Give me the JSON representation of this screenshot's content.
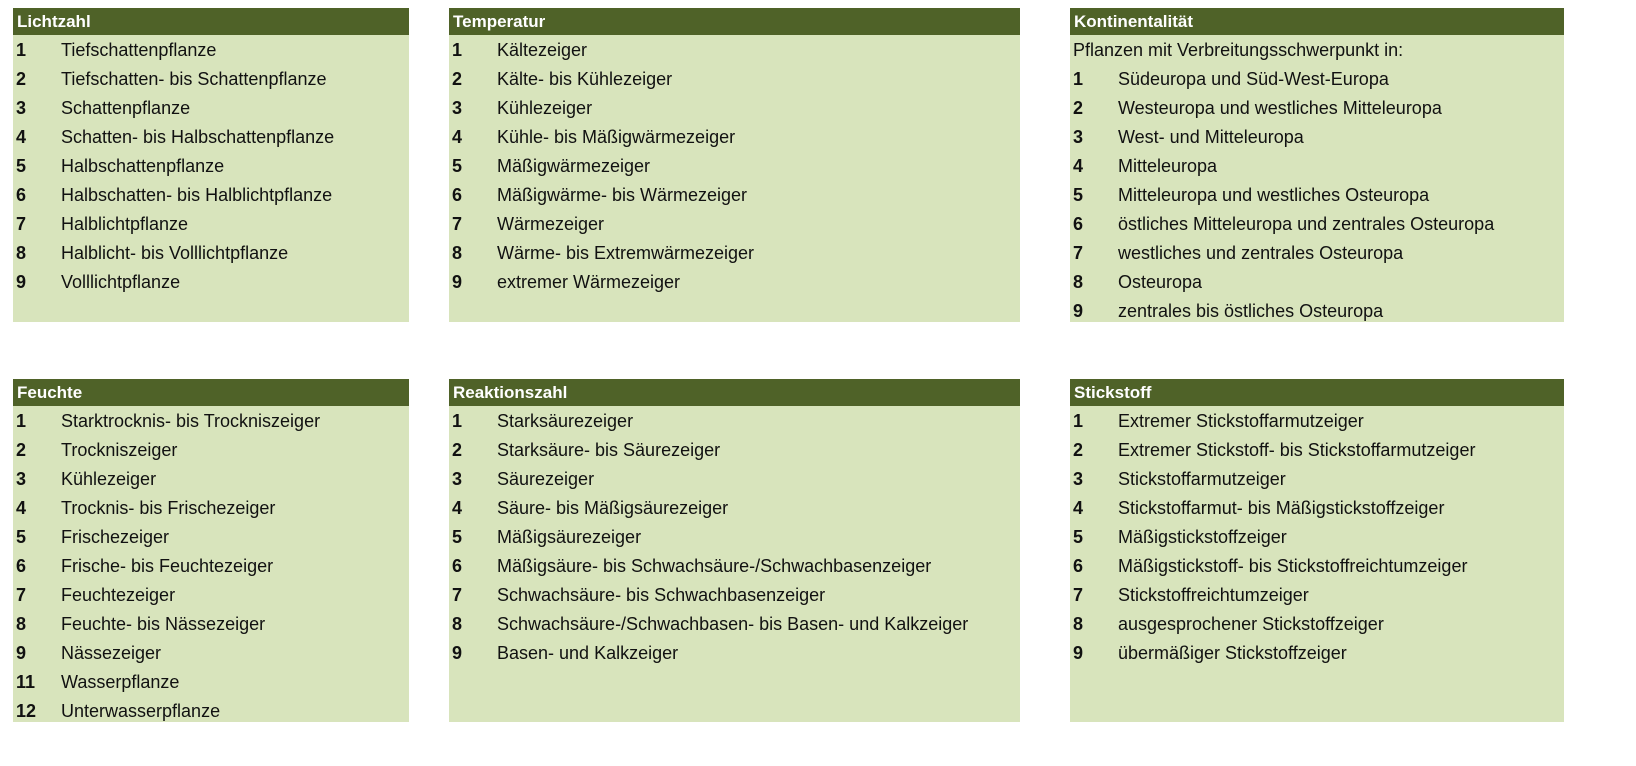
{
  "colors": {
    "header": "#4f6228",
    "body": "#d8e4bc",
    "header_text": "#ffffff"
  },
  "panels": [
    {
      "title": "Lichtzahl",
      "intro": "",
      "items": [
        {
          "n": "1",
          "t": "Tiefschattenpflanze"
        },
        {
          "n": "2",
          "t": "Tiefschatten- bis Schattenpflanze"
        },
        {
          "n": "3",
          "t": "Schattenpflanze"
        },
        {
          "n": "4",
          "t": "Schatten- bis Halbschattenpflanze"
        },
        {
          "n": "5",
          "t": "Halbschattenpflanze"
        },
        {
          "n": "6",
          "t": "Halbschatten- bis Halblichtpflanze"
        },
        {
          "n": "7",
          "t": "Halblichtpflanze"
        },
        {
          "n": "8",
          "t": "Halblicht- bis Volllichtpflanze"
        },
        {
          "n": "9",
          "t": "Volllichtpflanze"
        }
      ]
    },
    {
      "title": "Temperatur",
      "intro": "",
      "items": [
        {
          "n": "1",
          "t": "Kältezeiger"
        },
        {
          "n": "2",
          "t": "Kälte- bis Kühlezeiger"
        },
        {
          "n": "3",
          "t": "Kühlezeiger"
        },
        {
          "n": "4",
          "t": "Kühle- bis Mäßigwärmezeiger"
        },
        {
          "n": "5",
          "t": "Mäßigwärmezeiger"
        },
        {
          "n": "6",
          "t": "Mäßigwärme- bis Wärmezeiger"
        },
        {
          "n": "7",
          "t": "Wärmezeiger"
        },
        {
          "n": "8",
          "t": "Wärme- bis Extremwärmezeiger"
        },
        {
          "n": "9",
          "t": "extremer Wärmezeiger"
        }
      ]
    },
    {
      "title": "Kontinentalität",
      "intro": "Pflanzen mit Verbreitungsschwerpunkt in:",
      "items": [
        {
          "n": "1",
          "t": "Südeuropa und Süd-West-Europa"
        },
        {
          "n": "2",
          "t": "Westeuropa und westliches Mitteleuropa"
        },
        {
          "n": "3",
          "t": "West- und Mitteleuropa"
        },
        {
          "n": "4",
          "t": "Mitteleuropa"
        },
        {
          "n": "5",
          "t": "Mitteleuropa und westliches Osteuropa"
        },
        {
          "n": "6",
          "t": "östliches Mitteleuropa und zentrales Osteuropa"
        },
        {
          "n": "7",
          "t": "westliches und zentrales Osteuropa"
        },
        {
          "n": "8",
          "t": "Osteuropa"
        },
        {
          "n": "9",
          "t": "zentrales bis östliches Osteuropa"
        }
      ]
    },
    {
      "title": "Feuchte",
      "intro": "",
      "items": [
        {
          "n": "1",
          "t": "Starktrocknis- bis Trockniszeiger"
        },
        {
          "n": "2",
          "t": "Trockniszeiger"
        },
        {
          "n": "3",
          "t": "Kühlezeiger"
        },
        {
          "n": "4",
          "t": "Trocknis- bis Frischezeiger"
        },
        {
          "n": "5",
          "t": "Frischezeiger"
        },
        {
          "n": "6",
          "t": "Frische- bis Feuchtezeiger"
        },
        {
          "n": "7",
          "t": "Feuchtezeiger"
        },
        {
          "n": "8",
          "t": "Feuchte- bis Nässezeiger"
        },
        {
          "n": "9",
          "t": "Nässezeiger"
        },
        {
          "n": "11",
          "t": "Wasserpflanze"
        },
        {
          "n": "12",
          "t": "Unterwasserpflanze"
        }
      ]
    },
    {
      "title": "Reaktionszahl",
      "intro": "",
      "items": [
        {
          "n": "1",
          "t": "Starksäurezeiger"
        },
        {
          "n": "2",
          "t": "Starksäure- bis Säurezeiger"
        },
        {
          "n": "3",
          "t": "Säurezeiger"
        },
        {
          "n": "4",
          "t": "Säure- bis Mäßigsäurezeiger"
        },
        {
          "n": "5",
          "t": "Mäßigsäurezeiger"
        },
        {
          "n": "6",
          "t": "Mäßigsäure- bis Schwachsäure-/Schwachbasenzeiger"
        },
        {
          "n": "7",
          "t": "Schwachsäure- bis Schwachbasenzeiger"
        },
        {
          "n": "8",
          "t": "Schwachsäure-/Schwachbasen- bis Basen- und Kalkzeiger"
        },
        {
          "n": "9",
          "t": "Basen- und Kalkzeiger"
        }
      ]
    },
    {
      "title": "Stickstoff",
      "intro": "",
      "items": [
        {
          "n": "1",
          "t": "Extremer Stickstoffarmutzeiger"
        },
        {
          "n": "2",
          "t": "Extremer Stickstoff- bis Stickstoffarmutzeiger"
        },
        {
          "n": "3",
          "t": "Stickstoffarmutzeiger"
        },
        {
          "n": "4",
          "t": "Stickstoffarmut- bis Mäßigstickstoffzeiger"
        },
        {
          "n": "5",
          "t": "Mäßigstickstoffzeiger"
        },
        {
          "n": "6",
          "t": "Mäßigstickstoff- bis Stickstoffreichtumzeiger"
        },
        {
          "n": "7",
          "t": "Stickstoffreichtumzeiger"
        },
        {
          "n": "8",
          "t": "ausgesprochener Stickstoffzeiger"
        },
        {
          "n": "9",
          "t": "übermäßiger Stickstoffzeiger"
        }
      ]
    }
  ]
}
